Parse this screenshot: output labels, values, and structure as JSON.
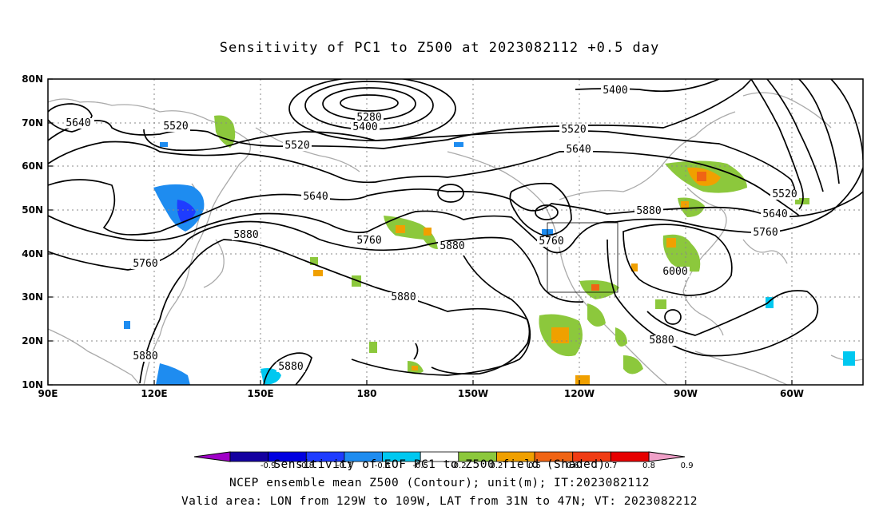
{
  "title": "Sensitivity of PC1 to Z500 at 2023082112 +0.5 day",
  "map": {
    "lon_ticks": [
      "90E",
      "120E",
      "150E",
      "180",
      "150W",
      "120W",
      "90W",
      "60W"
    ],
    "lat_ticks": [
      "80N",
      "70N",
      "60N",
      "50N",
      "40N",
      "30N",
      "20N",
      "10N"
    ],
    "contour_labels": [
      "5280",
      "5400",
      "5400",
      "5520",
      "5520",
      "5520",
      "5520",
      "5640",
      "5640",
      "5640",
      "5640",
      "5640",
      "5760",
      "5760",
      "5760",
      "5760",
      "5880",
      "5880",
      "5880",
      "5880",
      "5880",
      "5880",
      "5880",
      "6000"
    ],
    "valid_box": {
      "lon_min": "129W",
      "lon_max": "109W",
      "lat_min": "31N",
      "lat_max": "47N"
    }
  },
  "colorbar": {
    "ticks": [
      "-0.9",
      "-0.8",
      "-0.7",
      "-0.6",
      "-0.5",
      "-0.2",
      "0.2",
      "0.5",
      "0.6",
      "0.7",
      "0.8",
      "0.9"
    ],
    "colors": [
      "#a000c8",
      "#1400a0",
      "#0000e0",
      "#1e3cff",
      "#1e8cf0",
      "#00c8f0",
      "#ffffff",
      "#8cc83c",
      "#f0a000",
      "#f06414",
      "#f03c14",
      "#e60000",
      "#f0a0c8"
    ],
    "title": "Sensitivity of EOF PC1 to Z500 field (Shaded)"
  },
  "captions": {
    "line1": "NCEP ensemble mean Z500 (Contour); unit(m); IT:2023082112",
    "line2": "Valid area: LON from 129W to 109W, LAT from 31N to 47N; VT: 2023082212"
  }
}
